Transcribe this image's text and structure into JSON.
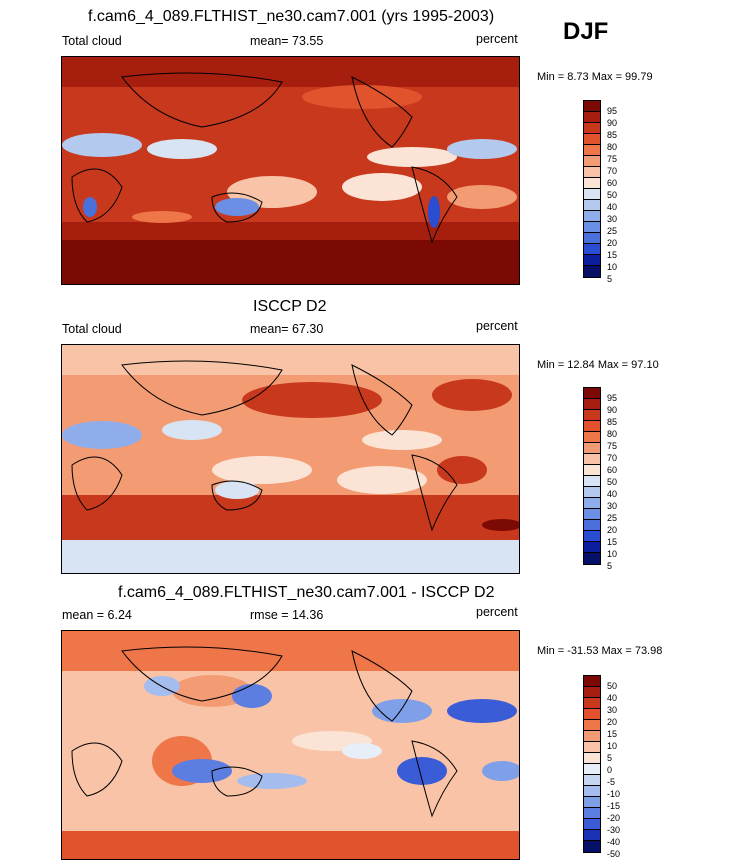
{
  "season": "DJF",
  "panels": [
    {
      "title": "f.cam6_4_089.FLTHIST_ne30.cam7.001 (yrs 1995-2003)",
      "left_label": "Total cloud",
      "center_label": "mean=  73.55",
      "right_label": "percent",
      "minmax": "Min =   8.73 Max =  99.79",
      "ticks": [
        "95",
        "90",
        "85",
        "80",
        "75",
        "70",
        "60",
        "50",
        "40",
        "30",
        "25",
        "20",
        "15",
        "10",
        "5"
      ]
    },
    {
      "title": "ISCCP D2",
      "left_label": "Total cloud",
      "center_label": "mean=  67.30",
      "right_label": "percent",
      "minmax": "Min =  12.84 Max =  97.10",
      "ticks": [
        "95",
        "90",
        "85",
        "80",
        "75",
        "70",
        "60",
        "50",
        "40",
        "30",
        "25",
        "20",
        "15",
        "10",
        "5"
      ]
    },
    {
      "title": "f.cam6_4_089.FLTHIST_ne30.cam7.001 - ISCCP D2",
      "left_label": "mean =   6.24",
      "center_label": "rmse =  14.36",
      "right_label": "percent",
      "minmax": "Min = -31.53 Max =  73.98",
      "ticks": [
        "50",
        "40",
        "30",
        "20",
        "15",
        "10",
        "5",
        "0",
        "-5",
        "-10",
        "-15",
        "-20",
        "-30",
        "-40",
        "-50"
      ]
    }
  ],
  "colors": {
    "abs_scale": [
      "#7a0a03",
      "#a61e0e",
      "#c8381d",
      "#e0532d",
      "#ee7649",
      "#f39c74",
      "#f8c3a6",
      "#fbe4d6",
      "#d8e4f4",
      "#b3c9ee",
      "#8eadea",
      "#6a8fe4",
      "#4a70dc",
      "#2a4ed2",
      "#0b1f9e",
      "#061066"
    ],
    "diff_scale": [
      "#7a0a03",
      "#a61e0e",
      "#c8381d",
      "#e0532d",
      "#ee7649",
      "#f39c74",
      "#f8c3a6",
      "#fbe4d6",
      "#e8eef8",
      "#c6d6f2",
      "#a4bdee",
      "#7f9fe8",
      "#5b7ee0",
      "#3a5cd6",
      "#1933b4",
      "#061066"
    ]
  }
}
